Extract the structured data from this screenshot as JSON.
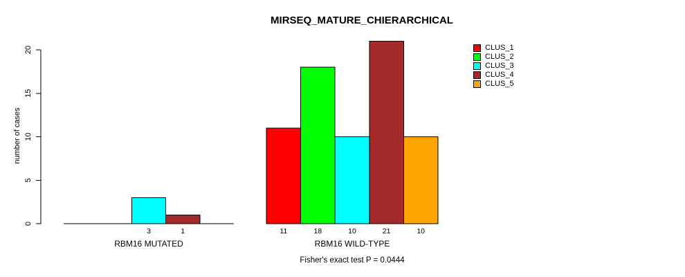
{
  "figure": {
    "background": "#ffffff"
  },
  "chart_data": {
    "type": "bar",
    "title": "MIRSEQ_MATURE_CHIERARCHICAL",
    "ylabel": "number of cases",
    "xlabel": "",
    "ylim": [
      0,
      21
    ],
    "yticks": [
      0,
      5,
      10,
      15,
      20
    ],
    "grid": false,
    "legend_position": "top-right",
    "bar_border_color": "#000000",
    "categories": [
      "RBM16 MUTATED",
      "RBM16 WILD-TYPE"
    ],
    "series": [
      {
        "name": "CLUS_1",
        "color": "#ff0000",
        "values": [
          0,
          11
        ]
      },
      {
        "name": "CLUS_2",
        "color": "#00ff00",
        "values": [
          0,
          18
        ]
      },
      {
        "name": "CLUS_3",
        "color": "#00ffff",
        "values": [
          3,
          10
        ]
      },
      {
        "name": "CLUS_4",
        "color": "#a52a2a",
        "values": [
          1,
          21
        ]
      },
      {
        "name": "CLUS_5",
        "color": "#ffa500",
        "values": [
          0,
          10
        ]
      }
    ],
    "groups": [
      {
        "label": "RBM16 MUTATED",
        "bar_labels": [
          "",
          "",
          "3",
          "1",
          ""
        ]
      },
      {
        "label": "RBM16 WILD-TYPE",
        "bar_labels": [
          "11",
          "18",
          "10",
          "21",
          "10"
        ]
      }
    ],
    "footnote": "Fisher's exact test P = 0.0444"
  }
}
